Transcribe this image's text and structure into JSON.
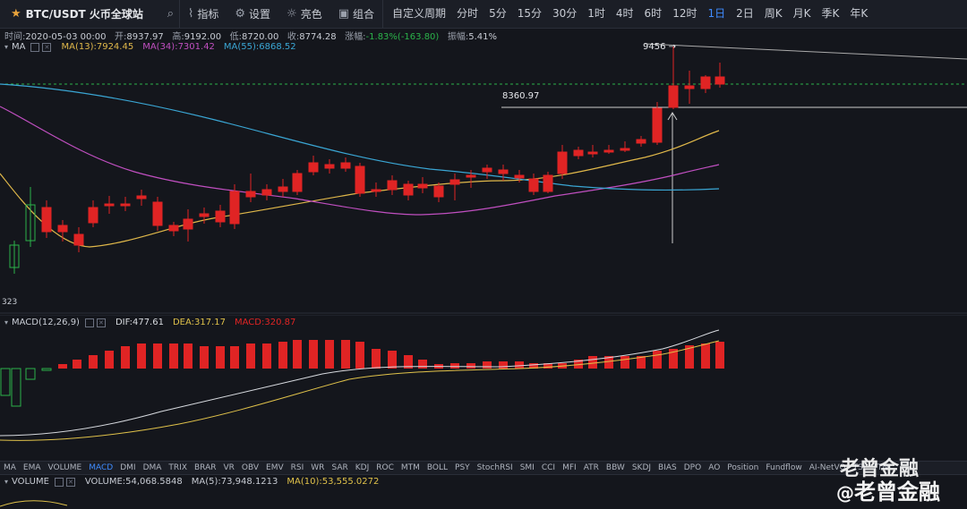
{
  "toolbar": {
    "symbol": "BTC/USDT 火币全球站",
    "buttons": [
      {
        "icon": "indicator-icon",
        "label": "指标"
      },
      {
        "icon": "gear-icon",
        "label": "设置"
      },
      {
        "icon": "sun-icon",
        "label": "亮色"
      },
      {
        "icon": "layout-icon",
        "label": "组合"
      }
    ],
    "periods": [
      "自定义周期",
      "分时",
      "5分",
      "15分",
      "30分",
      "1时",
      "4时",
      "6时",
      "12时",
      "1日",
      "2日",
      "周K",
      "月K",
      "季K",
      "年K"
    ],
    "active_period": "1日"
  },
  "info": {
    "time_label": "时间:",
    "time": "2020-05-03 00:00",
    "open_label": "开:",
    "open": "8937.97",
    "high_label": "高:",
    "high": "9192.00",
    "low_label": "低:",
    "low": "8720.00",
    "close_label": "收:",
    "close": "8774.28",
    "change_label": "涨幅:",
    "change": "-1.83%(-163.80)",
    "amp_label": "振幅:",
    "amp": "5.41%"
  },
  "main_legend": {
    "name": "MA",
    "items": [
      {
        "label": "MA(13):7924.45",
        "color": "#e0b84a"
      },
      {
        "label": "MA(34):7301.42",
        "color": "#c04fc0"
      },
      {
        "label": "MA(55):6868.52",
        "color": "#3aa6d4"
      }
    ]
  },
  "macd_legend": {
    "name": "MACD(12,26,9)",
    "items": [
      {
        "label": "DIF:477.61",
        "color": "#d8dbe0"
      },
      {
        "label": "DEA:317.17",
        "color": "#e0c24a"
      },
      {
        "label": "MACD:320.87",
        "color": "#e02424"
      }
    ]
  },
  "volume_legend": {
    "name": "VOLUME",
    "items": [
      {
        "label": "VOLUME:54,068.5848",
        "color": "#c8ccd4"
      },
      {
        "label": "MA(5):73,948.1213",
        "color": "#c8ccd4"
      },
      {
        "label": "MA(10):53,555.0272",
        "color": "#e0c24a"
      }
    ]
  },
  "annotations": {
    "high_mark": "9456 →",
    "level": "8360.97",
    "low_mark": "323"
  },
  "indicator_tabs": [
    "MA",
    "EMA",
    "VOLUME",
    "MACD",
    "DMI",
    "DMA",
    "TRIX",
    "BRAR",
    "VR",
    "OBV",
    "EMV",
    "RSI",
    "WR",
    "SAR",
    "KDJ",
    "ROC",
    "MTM",
    "BOLL",
    "PSY",
    "StochRSI",
    "SMI",
    "CCI",
    "MFI",
    "ATR",
    "BBW",
    "SKDJ",
    "BIAS",
    "DPO",
    "AO",
    "Position",
    "Fundflow",
    "AI-NetVO",
    "TSI",
    "TTN"
  ],
  "active_tab": "MACD",
  "watermark": {
    "line1": "老曾金融",
    "at": "@",
    "line2": "老曾金融"
  },
  "colors": {
    "up": "#2bb34a",
    "down": "#e02424",
    "ma13": "#e0b84a",
    "ma34": "#c04fc0",
    "ma55": "#3aa6d4"
  }
}
